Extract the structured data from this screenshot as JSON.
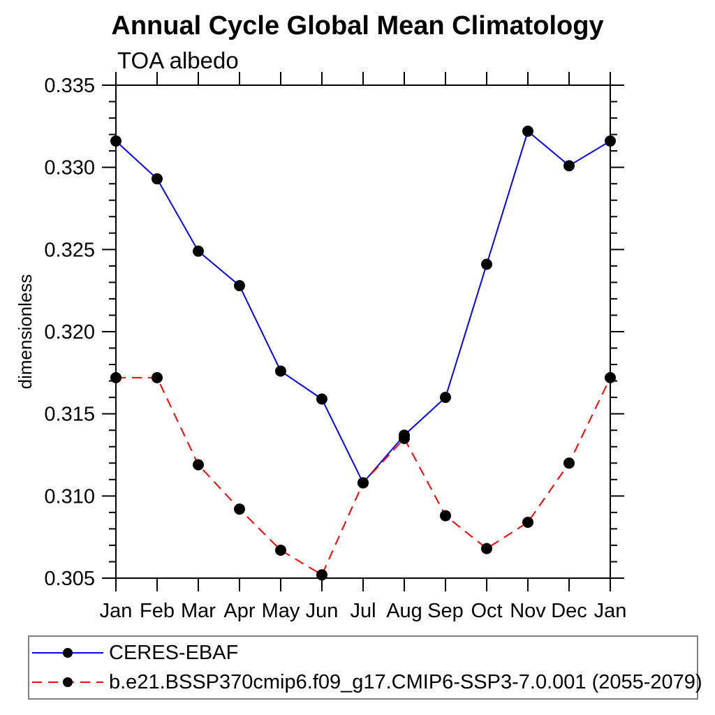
{
  "chart_data": {
    "type": "line",
    "title": "Annual Cycle Global Mean Climatology",
    "subtitle": "TOA albedo",
    "xlabel": "",
    "ylabel": "dimensionless",
    "categories": [
      "Jan",
      "Feb",
      "Mar",
      "Apr",
      "May",
      "Jun",
      "Jul",
      "Aug",
      "Sep",
      "Oct",
      "Nov",
      "Dec",
      "Jan"
    ],
    "ylim": [
      0.305,
      0.335
    ],
    "ytick_major": [
      0.335,
      0.33,
      0.325,
      0.32,
      0.315,
      0.31,
      0.305
    ],
    "ytick_labels": [
      "0.335",
      "0.330",
      "0.325",
      "0.320",
      "0.315",
      "0.310",
      "0.305"
    ],
    "ytick_minor_step": 0.001,
    "grid": false,
    "legend_position": "bottom",
    "axis_color": "#000000",
    "marker_color": "#000000",
    "series": [
      {
        "name": "CERES-EBAF",
        "color": "#0000ff",
        "line_style": "solid",
        "marker": "filled-circle",
        "values": [
          0.3316,
          0.3293,
          0.3249,
          0.3228,
          0.3176,
          0.3159,
          0.3108,
          0.3137,
          0.316,
          0.3241,
          0.3322,
          0.3301,
          0.3316
        ]
      },
      {
        "name": "b.e21.BSSP370cmip6.f09_g17.CMIP6-SSP3-7.0.001 (2055-2079)",
        "color": "#ff0000",
        "line_style": "dashed",
        "marker": "filled-circle",
        "values": [
          0.3172,
          0.3172,
          0.3119,
          0.3092,
          0.3067,
          0.3052,
          0.3108,
          0.3135,
          0.3088,
          0.3068,
          0.3084,
          0.312,
          0.3172
        ]
      }
    ]
  }
}
